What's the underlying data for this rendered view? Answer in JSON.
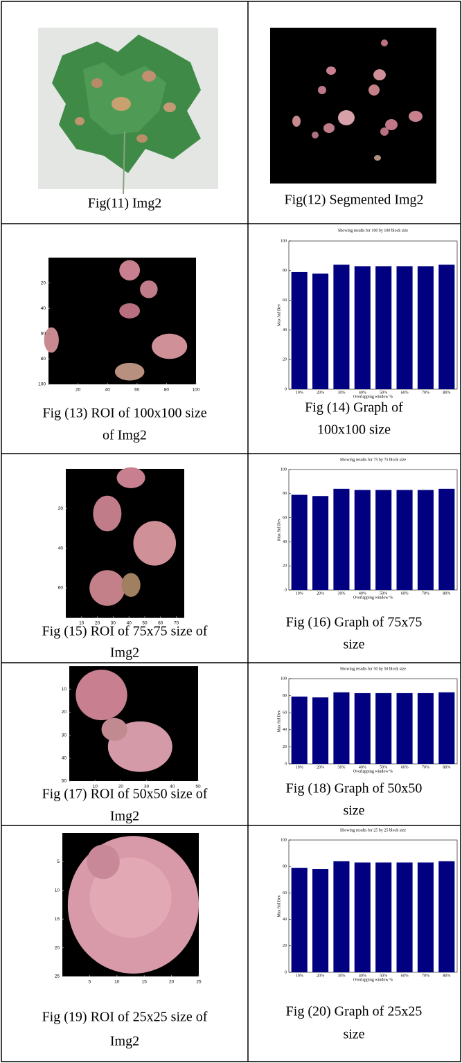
{
  "table": {
    "rows": [
      {
        "left": {
          "caption": [
            "Fig(11) Img2"
          ]
        },
        "right": {
          "caption": [
            "Fig(12) Segmented Img2"
          ]
        }
      },
      {
        "left": {
          "caption": [
            "Fig (13) ROI of 100x100 size",
            "of Img2"
          ],
          "xlim": [
            0,
            100
          ],
          "ylim": [
            0,
            100
          ],
          "xticks": [
            20,
            40,
            60,
            80,
            100
          ],
          "yticks": [
            20,
            40,
            60,
            80,
            100
          ]
        },
        "right": {
          "caption": [
            "Fig (14) Graph of",
            "100x100 size"
          ]
        }
      },
      {
        "left": {
          "caption": [
            "Fig (15) ROI of 75x75 size of",
            "Img2"
          ],
          "xlim": [
            0,
            75
          ],
          "ylim": [
            0,
            75
          ],
          "xticks": [
            10,
            20,
            30,
            40,
            50,
            60,
            70
          ],
          "yticks": [
            20,
            40,
            60
          ]
        },
        "right": {
          "caption": [
            "Fig (16) Graph of 75x75",
            "size"
          ]
        }
      },
      {
        "left": {
          "caption": [
            "Fig (17) ROI of 50x50 size of",
            "Img2"
          ],
          "xlim": [
            0,
            50
          ],
          "ylim": [
            0,
            50
          ],
          "xticks": [
            10,
            20,
            30,
            40,
            50
          ],
          "yticks": [
            10,
            20,
            30,
            40,
            50
          ]
        },
        "right": {
          "caption": [
            "Fig (18) Graph of 50x50",
            "size"
          ]
        }
      },
      {
        "left": {
          "caption": [
            "Fig (19) ROI of 25x25 size of",
            "Img2"
          ],
          "xlim": [
            0,
            25
          ],
          "ylim": [
            0,
            25
          ],
          "xticks": [
            5,
            10,
            15,
            20,
            25
          ],
          "yticks": [
            5,
            10,
            15,
            20,
            25
          ]
        },
        "right": {
          "caption": [
            "Fig (20) Graph of 25x25",
            "size"
          ]
        }
      }
    ]
  },
  "chart_data": [
    {
      "type": "bar",
      "title": "Showing results for 100 by 100 block size",
      "xlabel": "Overlapping window %",
      "ylabel": "Max Std Dev",
      "categories": [
        "10%",
        "20%",
        "30%",
        "40%",
        "50%",
        "60%",
        "70%",
        "80%"
      ],
      "values": [
        79,
        78,
        84,
        83,
        83,
        83,
        83,
        84
      ],
      "color": "#000080",
      "ylim": [
        0,
        100
      ],
      "yticks": [
        0,
        20,
        40,
        60,
        80,
        100
      ]
    },
    {
      "type": "bar",
      "title": "Showing results for 75 by 75 block size",
      "xlabel": "Overlapping window %",
      "ylabel": "Max Std Dev",
      "categories": [
        "10%",
        "20%",
        "30%",
        "40%",
        "50%",
        "60%",
        "70%",
        "80%"
      ],
      "values": [
        79,
        78,
        84,
        83,
        83,
        83,
        83,
        84
      ],
      "color": "#000080",
      "ylim": [
        0,
        100
      ],
      "yticks": [
        0,
        20,
        40,
        60,
        80,
        100
      ]
    },
    {
      "type": "bar",
      "title": "Showing results for 50 by 50 block size",
      "xlabel": "Overlapping window %",
      "ylabel": "Max Std Dev",
      "categories": [
        "10%",
        "20%",
        "30%",
        "40%",
        "50%",
        "60%",
        "70%",
        "80%"
      ],
      "values": [
        79,
        78,
        84,
        83,
        83,
        83,
        83,
        84
      ],
      "color": "#000080",
      "ylim": [
        0,
        100
      ],
      "yticks": [
        0,
        20,
        40,
        60,
        80,
        100
      ]
    },
    {
      "type": "bar",
      "title": "Showing results for 25 by 25 block size",
      "xlabel": "Overlapping window %",
      "ylabel": "Max Std Dev",
      "categories": [
        "10%",
        "20%",
        "30%",
        "40%",
        "50%",
        "60%",
        "70%",
        "80%"
      ],
      "values": [
        79,
        78,
        84,
        83,
        83,
        83,
        83,
        84
      ],
      "color": "#000080",
      "ylim": [
        0,
        100
      ],
      "yticks": [
        0,
        20,
        40,
        60,
        80,
        100
      ]
    }
  ]
}
